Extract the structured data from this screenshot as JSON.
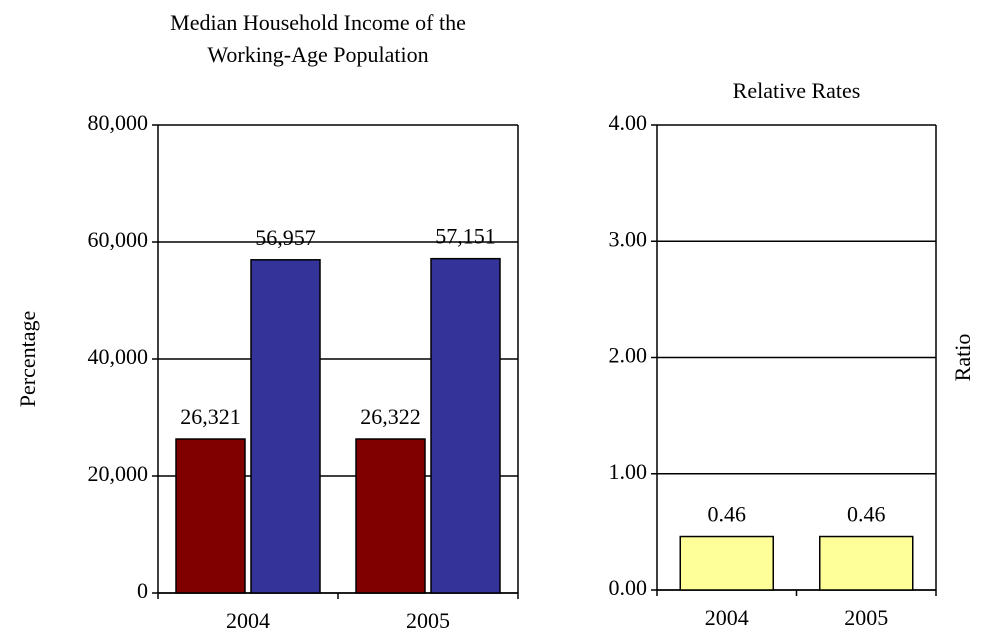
{
  "chart_data": [
    {
      "type": "bar",
      "title": [
        "Median Household Income of the",
        "Working-Age Population"
      ],
      "ylabel": "Percentage",
      "categories": [
        "2004",
        "2005"
      ],
      "series": [
        {
          "color": "#800000",
          "values": [
            26321,
            26322
          ],
          "value_labels": [
            "26,321",
            "26,322"
          ]
        },
        {
          "color": "#333399",
          "values": [
            56957,
            57151
          ],
          "value_labels": [
            "56,957",
            "57,151"
          ]
        }
      ],
      "ylim": [
        0,
        80000
      ],
      "yticks": [
        {
          "value": 0,
          "label": "0"
        },
        {
          "value": 20000,
          "label": "20,000"
        },
        {
          "value": 40000,
          "label": "40,000"
        },
        {
          "value": 60000,
          "label": "60,000"
        },
        {
          "value": 80000,
          "label": "80,000"
        }
      ],
      "grid": true
    },
    {
      "type": "bar",
      "title": [
        "Relative Rates"
      ],
      "ylabel": "Ratio",
      "categories": [
        "2004",
        "2005"
      ],
      "series": [
        {
          "color": "#ffff99",
          "values": [
            0.46,
            0.46
          ]
        }
      ],
      "ylim": [
        0,
        4
      ],
      "yticks": [
        {
          "value": 0,
          "label": "0.00"
        },
        {
          "value": 1,
          "label": "1.00"
        },
        {
          "value": 2,
          "label": "2.00"
        },
        {
          "value": 3,
          "label": "3.00"
        },
        {
          "value": 4,
          "label": "4.00"
        }
      ],
      "grid": true
    }
  ]
}
